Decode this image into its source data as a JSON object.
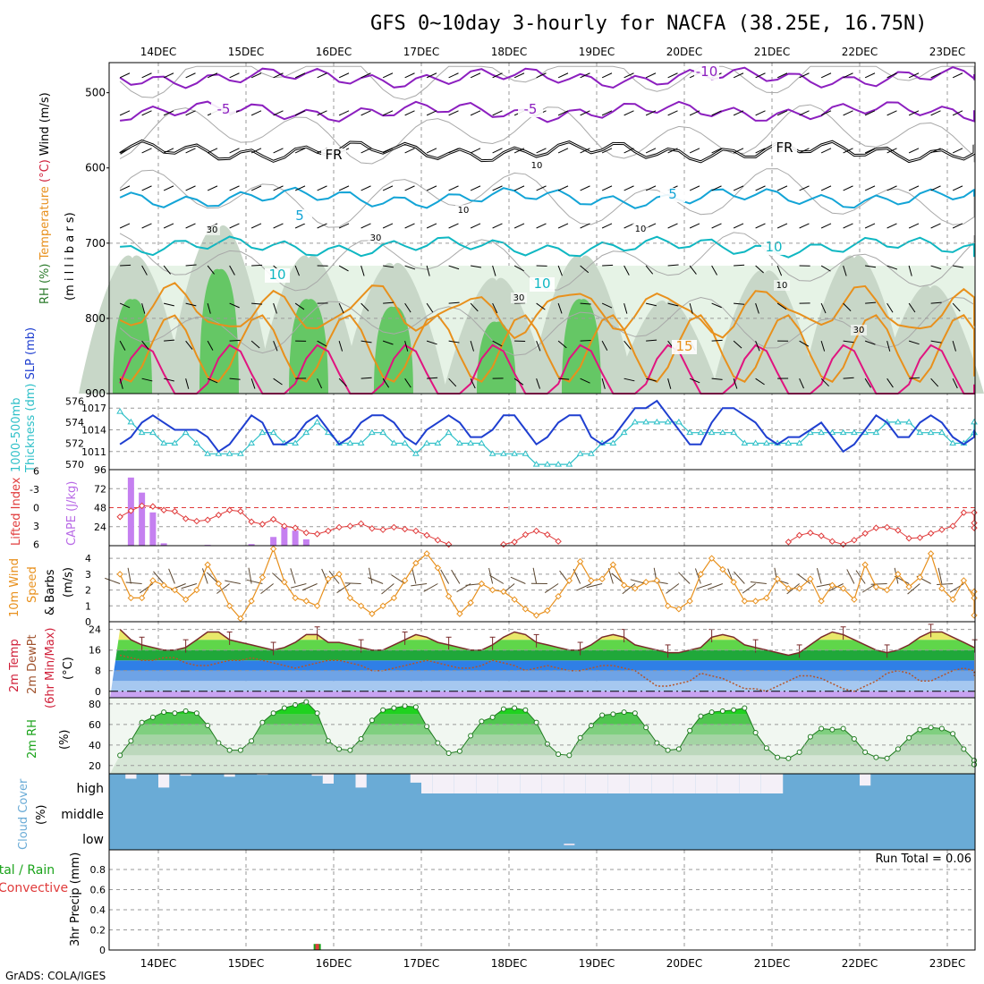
{
  "title": "GFS 0~10day 3-hourly for NACFA (38.25E, 16.75N)",
  "footer": "GrADS: COLA/IGES",
  "colors": {
    "purple": "#8c1fbf",
    "cyan": "#13a4d6",
    "teal": "#0fb7c2",
    "orange": "#e8901c",
    "magenta": "#e0147f",
    "blue": "#1f3fd0",
    "cyanLine": "#2fc0c8",
    "red": "#e03b3b",
    "cloud": "#6aabd6",
    "rhLight": "#e6f3e6",
    "rhMid": "#c8d7c8",
    "rhDark": "#65c765"
  },
  "chart_data": {
    "type": "meteogram",
    "x_labels": [
      "14DEC",
      "15DEC",
      "16DEC",
      "17DEC",
      "18DEC",
      "19DEC",
      "20DEC",
      "21DEC",
      "22DEC",
      "23DEC"
    ],
    "n_steps": 81,
    "panels": [
      {
        "id": "upper_air",
        "ylabel_parts": [
          {
            "text": "RH (%)",
            "color": "#2a7a2a"
          },
          {
            "text": "Temperature",
            "color": "#e8901c"
          },
          {
            "text": "(°C)",
            "color": "#d0203a"
          },
          {
            "text": "Wind (m/s)",
            "color": "#000000"
          }
        ],
        "ylabel2": "(m i l l i b a r s)",
        "yticks": [
          500,
          600,
          700,
          800,
          900
        ],
        "ylim": [
          460,
          900
        ],
        "contour_labels": [
          {
            "text": "-10",
            "color": "#8c1fbf"
          },
          {
            "text": "-5",
            "color": "#8c1fbf"
          },
          {
            "text": "-5",
            "color": "#8c1fbf"
          },
          {
            "text": "FR",
            "color": "#000000"
          },
          {
            "text": "FR",
            "color": "#000000"
          },
          {
            "text": "5",
            "color": "#13a4d6"
          },
          {
            "text": "5",
            "color": "#13a4d6"
          },
          {
            "text": "10",
            "color": "#0fb7c2"
          },
          {
            "text": "10",
            "color": "#0fb7c2"
          },
          {
            "text": "10",
            "color": "#0fb7c2"
          },
          {
            "text": "15",
            "color": "#e8901c"
          },
          {
            "text": "30",
            "color": "#9a9a9a"
          },
          {
            "text": "30",
            "color": "#9a9a9a"
          },
          {
            "text": "30",
            "color": "#9a9a9a"
          },
          {
            "text": "30",
            "color": "#9a9a9a"
          },
          {
            "text": "10",
            "color": "#9a9a9a"
          },
          {
            "text": "10",
            "color": "#9a9a9a"
          },
          {
            "text": "10",
            "color": "#9a9a9a"
          },
          {
            "text": "10",
            "color": "#9a9a9a"
          }
        ],
        "isotherms_mb": [
          {
            "label": "-10",
            "base": 480
          },
          {
            "label": "-5",
            "base": 525
          },
          {
            "label": "FR",
            "base": 578
          },
          {
            "label": "5",
            "base": 640
          },
          {
            "label": "10",
            "base": 705
          },
          {
            "label": "15",
            "base": 790
          }
        ]
      },
      {
        "id": "slp_thickness",
        "ylabel_parts": [
          {
            "text": "1000-500mb",
            "color": "#2fc0c8"
          },
          {
            "text": "Thickness (dm)",
            "color": "#2fc0c8"
          },
          {
            "text": "SLP (mb)",
            "color": "#1f3fd0"
          }
        ],
        "yticks_left": [
          576,
          574,
          572,
          570
        ],
        "yticks_right": [
          1017,
          1014,
          1011
        ],
        "slp_mb": [
          1012,
          1013,
          1015,
          1016,
          1015,
          1014,
          1014,
          1014,
          1013,
          1011,
          1012,
          1014,
          1016,
          1015,
          1012,
          1012,
          1013,
          1015,
          1016,
          1014,
          1012,
          1013,
          1015,
          1016,
          1016,
          1015,
          1013,
          1012,
          1014,
          1015,
          1016,
          1015,
          1013,
          1013,
          1014,
          1016,
          1016,
          1014,
          1012,
          1013,
          1015,
          1016,
          1016,
          1013,
          1012,
          1013,
          1015,
          1017,
          1017,
          1018,
          1016,
          1014,
          1012,
          1012,
          1015,
          1017,
          1017,
          1016,
          1015,
          1013,
          1012,
          1013,
          1013,
          1014,
          1015,
          1013,
          1011,
          1012,
          1014,
          1016,
          1015,
          1013,
          1013,
          1015,
          1016,
          1015,
          1013,
          1012,
          1013,
          1014,
          1014
        ],
        "thickness_dm": [
          575,
          574,
          573,
          573,
          572,
          572,
          573,
          572,
          571,
          571,
          571,
          571,
          572,
          573,
          573,
          572,
          572,
          573,
          574,
          573,
          572,
          572,
          572,
          573,
          573,
          572,
          572,
          571,
          572,
          572,
          573,
          572,
          572,
          572,
          571,
          571,
          571,
          571,
          570,
          570,
          570,
          570,
          571,
          571,
          572,
          572,
          573,
          574,
          574,
          574,
          574,
          574,
          573,
          573,
          573,
          573,
          573,
          572,
          572,
          572,
          572,
          572,
          572,
          573,
          573,
          573,
          573,
          573,
          573,
          573,
          574,
          574,
          574,
          573,
          573,
          573,
          572,
          572,
          573,
          573,
          574
        ]
      },
      {
        "id": "cape_li",
        "ylabel_parts": [
          {
            "text": "Lifted Index",
            "color": "#e03b3b"
          },
          {
            "text": "CAPE (J/kg)",
            "color": "#b86ae6"
          }
        ],
        "yticks_left": [
          "6",
          "-3",
          "0",
          "3",
          "6"
        ],
        "yticks_right": [
          96,
          72,
          48,
          24
        ],
        "cape_jkg": [
          0,
          86,
          67,
          42,
          3,
          0,
          0,
          0,
          1,
          0,
          0,
          0,
          2,
          0,
          11,
          23,
          19,
          8,
          0,
          0,
          0,
          0,
          0,
          0,
          0,
          0,
          0,
          0,
          0,
          0,
          0,
          0,
          0,
          0,
          0,
          0,
          0,
          0,
          0,
          0,
          0,
          0,
          0,
          0,
          0,
          0,
          0,
          0,
          0,
          0,
          0,
          0,
          0,
          0,
          0,
          0,
          0,
          0,
          0,
          0,
          0,
          0,
          0,
          0,
          0,
          0,
          0,
          0,
          0,
          0,
          0,
          0,
          0,
          0,
          0,
          0,
          0,
          0,
          0,
          0,
          0
        ],
        "lifted_index": [
          1.5,
          0.5,
          -0.3,
          -0.2,
          0.4,
          0.6,
          1.8,
          2.2,
          2.0,
          1.2,
          0.4,
          0.6,
          2.3,
          2.7,
          1.9,
          3.0,
          3.3,
          4.1,
          4.3,
          3.8,
          3.2,
          3.0,
          2.6,
          3.4,
          3.6,
          3.2,
          3.5,
          3.8,
          4.5,
          5.3,
          6.0,
          6.5,
          6.5,
          6.4,
          6.2,
          6.0,
          5.6,
          4.4,
          3.8,
          4.4,
          5.5,
          6.5,
          7.0,
          6.8,
          6.5,
          6.2,
          6.9,
          7.4,
          7.3,
          7.3,
          7.3,
          7.3,
          7.5,
          7.7,
          7.8,
          7.8,
          7.8,
          7.8,
          7.6,
          7.3,
          6.6,
          5.6,
          4.5,
          4.1,
          4.6,
          5.5,
          6.0,
          5.3,
          4.2,
          3.3,
          3.2,
          3.7,
          5.0,
          4.9,
          4.2,
          3.6,
          3.0,
          0.8,
          0.8,
          2.5,
          3.3
        ]
      },
      {
        "id": "wind10m",
        "ylabel_parts": [
          {
            "text": "10m Wind",
            "color": "#e8901c"
          },
          {
            "text": "Speed",
            "color": "#e8901c"
          },
          {
            "text": "& Barbs",
            "color": "#000000"
          },
          {
            "text": "(m/s)",
            "color": "#000000"
          }
        ],
        "yticks": [
          0,
          1,
          2,
          3,
          4
        ],
        "speed_ms": [
          3.0,
          1.5,
          1.5,
          2.6,
          2.3,
          2.0,
          1.4,
          2.0,
          3.6,
          2.4,
          1.0,
          0.2,
          1.3,
          2.8,
          4.6,
          2.5,
          1.5,
          1.3,
          1.0,
          2.7,
          3.0,
          1.5,
          1.0,
          0.5,
          1.0,
          1.5,
          2.6,
          3.7,
          4.3,
          3.4,
          1.6,
          0.5,
          1.2,
          2.4,
          2.0,
          1.9,
          1.4,
          0.8,
          0.4,
          0.7,
          1.6,
          2.6,
          3.8,
          2.6,
          2.7,
          3.6,
          2.3,
          2.1,
          2.5,
          2.6,
          1.0,
          0.8,
          1.3,
          3.0,
          4.0,
          3.3,
          2.5,
          1.3,
          1.3,
          1.5,
          2.7,
          2.1,
          2.1,
          2.7,
          1.3,
          2.3,
          2.1,
          1.4,
          3.6,
          2.2,
          2.0,
          3.0,
          2.2,
          2.8,
          4.3,
          2.1,
          1.4,
          2.6,
          1.5,
          1.9,
          0.4
        ]
      },
      {
        "id": "temp2m",
        "ylabel_parts": [
          {
            "text": "2m Temp",
            "color": "#d0203a"
          },
          {
            "text": "2m DewPt",
            "color": "#a0522d"
          },
          {
            "text": "(6hr Min/Max)",
            "color": "#d0203a"
          },
          {
            "text": "(°C)",
            "color": "#d0203a"
          }
        ],
        "yticks": [
          0,
          8,
          16,
          24
        ],
        "temp_c": [
          24,
          20,
          18,
          17,
          16,
          16,
          17,
          20,
          23,
          23,
          20,
          19,
          18,
          17,
          16,
          17,
          19,
          22,
          22,
          19,
          19,
          18,
          17,
          16,
          16,
          18,
          20,
          22,
          21,
          19,
          18,
          17,
          16,
          16,
          18,
          21,
          23,
          22,
          19,
          18,
          17,
          16,
          16,
          18,
          21,
          22,
          21,
          18,
          17,
          16,
          15,
          15,
          16,
          17,
          21,
          22,
          21,
          18,
          17,
          16,
          15,
          14,
          15,
          18,
          21,
          23,
          22,
          20,
          18,
          16,
          15,
          16,
          18,
          21,
          23,
          23,
          21,
          19,
          17,
          17,
          17
        ],
        "dewpoint_c": [
          14,
          13,
          12,
          12,
          13,
          13,
          11,
          10,
          10,
          11,
          12,
          12,
          13,
          12,
          11,
          10,
          9,
          10,
          11,
          12,
          12,
          11,
          10,
          8,
          8,
          9,
          10,
          11,
          12,
          11,
          10,
          9,
          9,
          10,
          12,
          11,
          10,
          8,
          9,
          10,
          9,
          8,
          8,
          9,
          10,
          10,
          9,
          8,
          5,
          2,
          2,
          3,
          4,
          7,
          6,
          5,
          3,
          1,
          1,
          0,
          2,
          4,
          6,
          6,
          5,
          3,
          1,
          0,
          2,
          4,
          7,
          8,
          7,
          4,
          4,
          6,
          8,
          9,
          8,
          6,
          7
        ]
      },
      {
        "id": "rh2m",
        "ylabel_parts": [
          {
            "text": "2m RH",
            "color": "#1aa31a"
          },
          {
            "text": "(%)",
            "color": "#000000"
          }
        ],
        "yticks": [
          20,
          40,
          60,
          80
        ],
        "rh_pct": [
          30,
          44,
          62,
          67,
          72,
          71,
          73,
          71,
          59,
          42,
          35,
          35,
          44,
          62,
          71,
          76,
          79,
          82,
          71,
          44,
          36,
          35,
          46,
          64,
          74,
          76,
          78,
          77,
          58,
          42,
          32,
          34,
          49,
          63,
          67,
          75,
          76,
          74,
          62,
          41,
          31,
          30,
          47,
          59,
          69,
          70,
          72,
          71,
          57,
          42,
          35,
          36,
          54,
          68,
          72,
          73,
          74,
          76,
          52,
          37,
          28,
          27,
          33,
          48,
          56,
          55,
          56,
          46,
          33,
          28,
          27,
          36,
          47,
          55,
          57,
          56,
          51,
          36,
          25,
          21,
          21
        ]
      },
      {
        "id": "cloud",
        "ylabel_parts": [
          {
            "text": "Cloud Cover",
            "color": "#6aabd6"
          },
          {
            "text": "(%)",
            "color": "#000000"
          }
        ],
        "level_labels": [
          "high",
          "middle",
          "low"
        ],
        "high_pct": [
          100,
          75,
          100,
          100,
          30,
          100,
          90,
          100,
          100,
          100,
          85,
          100,
          100,
          95,
          100,
          100,
          100,
          100,
          90,
          50,
          100,
          100,
          30,
          100,
          100,
          100,
          100,
          55,
          0,
          0,
          0,
          0,
          0,
          0,
          0,
          0,
          0,
          0,
          0,
          0,
          0,
          0,
          0,
          0,
          0,
          0,
          0,
          0,
          0,
          0,
          0,
          0,
          0,
          0,
          0,
          0,
          0,
          0,
          0,
          0,
          0,
          100,
          100,
          100,
          100,
          100,
          100,
          100,
          40,
          100,
          100,
          100,
          100,
          100,
          100,
          100,
          100,
          100,
          100,
          100,
          100
        ]
      },
      {
        "id": "precip",
        "ylabel_parts": [
          {
            "text": "3hr Precip (mm)",
            "color": "#000000"
          },
          {
            "text": "Total / Rain",
            "color": "#1aa31a"
          },
          {
            "text": "Convective",
            "color": "#e03b3b"
          }
        ],
        "yticks": [
          "0",
          "0.2",
          "0.4",
          "0.6",
          "0.8"
        ],
        "run_total": "Run Total = 0.06",
        "precip_mm": [
          0,
          0,
          0,
          0,
          0,
          0,
          0,
          0,
          0,
          0,
          0,
          0,
          0,
          0,
          0,
          0,
          0,
          0,
          0.06,
          0,
          0,
          0,
          0,
          0,
          0,
          0,
          0,
          0,
          0,
          0,
          0,
          0,
          0,
          0,
          0,
          0,
          0,
          0,
          0,
          0,
          0,
          0,
          0,
          0,
          0,
          0,
          0,
          0,
          0,
          0,
          0,
          0,
          0,
          0,
          0,
          0,
          0,
          0,
          0,
          0,
          0,
          0,
          0,
          0,
          0,
          0,
          0,
          0,
          0,
          0,
          0,
          0,
          0,
          0,
          0,
          0,
          0,
          0,
          0,
          0,
          0
        ]
      }
    ]
  }
}
